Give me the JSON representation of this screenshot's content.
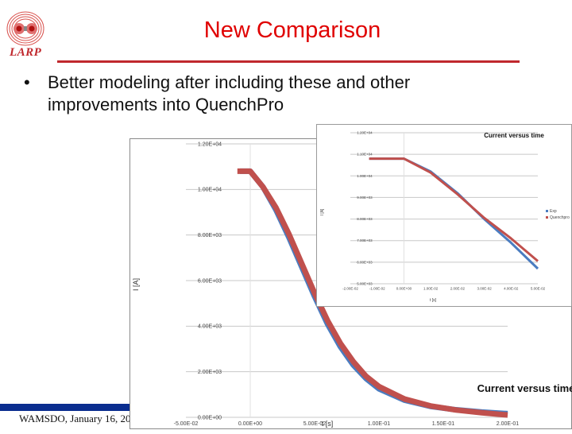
{
  "slide": {
    "title": "New Comparison",
    "logo_text": "LARP",
    "bullets": [
      "Better modeling after including these and other improvements into QuenchPro"
    ],
    "bullet_glyph": "•",
    "footer": "WAMSDO, January 16, 2013 - CE",
    "colors": {
      "title": "#e00000",
      "rule": "#c0282d",
      "footer_band": "#0a2d8f",
      "exp": "#4a7cc0",
      "quenchpro": "#c0504d"
    }
  },
  "chart_data": [
    {
      "type": "line",
      "title": "Current versus time",
      "xlabel": "t [s]",
      "ylabel": "I [A]",
      "x_ticks": [
        "-5.00E-02",
        "0.00E+00",
        "5.00E-02",
        "1.00E-01",
        "1.50E-01",
        "2.00E-01"
      ],
      "y_ticks": [
        "0.00E+00",
        "2.00E+03",
        "4.00E+03",
        "6.00E+03",
        "8.00E+03",
        "1.00E+04",
        "1.20E+04"
      ],
      "xlim": [
        -0.05,
        0.2
      ],
      "ylim": [
        0,
        12000
      ],
      "grid": true,
      "series": [
        {
          "name": "Exp",
          "color": "#4a7cc0",
          "x": [
            -0.008,
            0.0,
            0.01,
            0.02,
            0.03,
            0.04,
            0.05,
            0.06,
            0.07,
            0.08,
            0.09,
            0.1,
            0.12,
            0.14,
            0.16,
            0.18,
            0.2
          ],
          "y": [
            10800,
            10800,
            10100,
            9100,
            7900,
            6600,
            5300,
            4100,
            3100,
            2300,
            1700,
            1250,
            750,
            480,
            330,
            230,
            160
          ]
        },
        {
          "name": "Quenchpro",
          "color": "#c0504d",
          "x": [
            -0.01,
            0.0,
            0.01,
            0.02,
            0.03,
            0.04,
            0.05,
            0.06,
            0.07,
            0.08,
            0.09,
            0.1,
            0.12,
            0.14,
            0.16,
            0.18,
            0.2
          ],
          "y": [
            10800,
            10800,
            10100,
            9200,
            8050,
            6750,
            5450,
            4250,
            3250,
            2450,
            1800,
            1350,
            800,
            500,
            320,
            200,
            100
          ]
        }
      ]
    },
    {
      "type": "line",
      "title": "Current versus time",
      "xlabel": "t [s]",
      "ylabel": "I [A]",
      "x_ticks": [
        "-2.00E-02",
        "-1.00E-02",
        "0.00E+00",
        "1.00E-02",
        "2.00E-02",
        "3.00E-02",
        "4.00E-02",
        "5.00E-02"
      ],
      "y_ticks": [
        "5.00E+03",
        "6.00E+03",
        "7.00E+03",
        "8.00E+03",
        "9.00E+03",
        "1.00E+04",
        "1.10E+04",
        "1.20E+04"
      ],
      "xlim": [
        -0.02,
        0.05
      ],
      "ylim": [
        5000,
        12000
      ],
      "grid": true,
      "legend": [
        "Exp",
        "Quenchpro"
      ],
      "legend_position": "right",
      "series": [
        {
          "name": "Exp",
          "color": "#4a7cc0",
          "x": [
            -0.013,
            0.0,
            0.01,
            0.02,
            0.03,
            0.04,
            0.05
          ],
          "y": [
            10800,
            10800,
            10200,
            9200,
            8000,
            6900,
            5700
          ]
        },
        {
          "name": "Quenchpro",
          "color": "#c0504d",
          "x": [
            -0.013,
            0.0,
            0.01,
            0.02,
            0.03,
            0.04,
            0.05
          ],
          "y": [
            10800,
            10800,
            10150,
            9150,
            8050,
            7100,
            6050
          ]
        }
      ]
    }
  ]
}
